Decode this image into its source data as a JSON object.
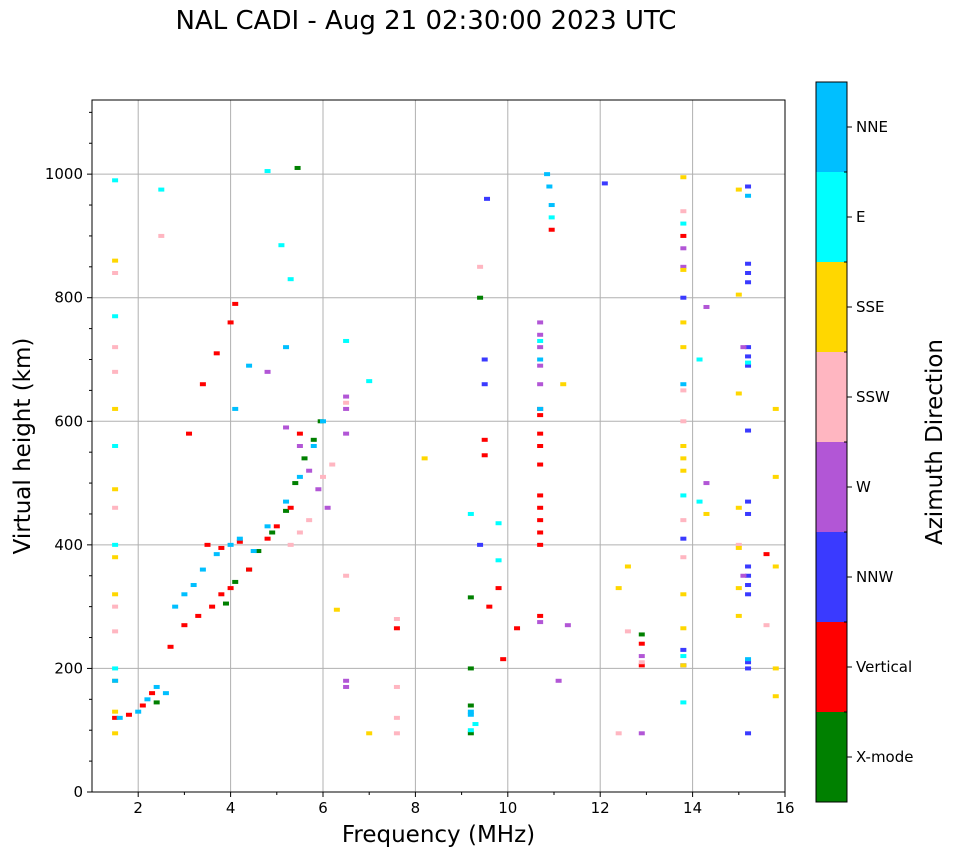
{
  "chart_data": {
    "type": "scatter",
    "title": "NAL CADI - Aug 21 02:30:00 2023 UTC",
    "xlabel": "Frequency (MHz)",
    "ylabel": "Virtual height (km)",
    "xlim": [
      1,
      16
    ],
    "ylim": [
      0,
      1120
    ],
    "x_ticks": [
      2,
      4,
      6,
      8,
      10,
      12,
      14,
      16
    ],
    "y_ticks": [
      0,
      200,
      400,
      600,
      800,
      1000
    ],
    "grid": true,
    "colorbar": {
      "label": "Azimuth Direction",
      "categories": [
        {
          "name": "X-mode",
          "color": "#008000"
        },
        {
          "name": "Vertical",
          "color": "#ff0000"
        },
        {
          "name": "NNW",
          "color": "#3a3aff"
        },
        {
          "name": "W",
          "color": "#b256d6"
        },
        {
          "name": "SSW",
          "color": "#ffb6c1"
        },
        {
          "name": "SSE",
          "color": "#ffd700"
        },
        {
          "name": "E",
          "color": "#00ffff"
        },
        {
          "name": "NNE",
          "color": "#00bfff"
        }
      ]
    },
    "series": [
      {
        "name": "X-mode",
        "points": [
          [
            2.4,
            145
          ],
          [
            3.9,
            305
          ],
          [
            4.1,
            340
          ],
          [
            4.4,
            360
          ],
          [
            4.6,
            390
          ],
          [
            4.9,
            420
          ],
          [
            5.2,
            455
          ],
          [
            5.4,
            500
          ],
          [
            5.6,
            540
          ],
          [
            5.8,
            570
          ],
          [
            5.95,
            600
          ],
          [
            9.2,
            95
          ],
          [
            9.2,
            140
          ],
          [
            9.2,
            200
          ],
          [
            9.2,
            315
          ],
          [
            9.4,
            800
          ],
          [
            12.9,
            255
          ],
          [
            5.45,
            1010
          ]
        ]
      },
      {
        "name": "Vertical",
        "points": [
          [
            1.5,
            120
          ],
          [
            1.8,
            125
          ],
          [
            2.1,
            140
          ],
          [
            2.3,
            160
          ],
          [
            2.7,
            235
          ],
          [
            3.0,
            270
          ],
          [
            3.3,
            285
          ],
          [
            3.6,
            300
          ],
          [
            3.8,
            320
          ],
          [
            4.0,
            330
          ],
          [
            4.4,
            360
          ],
          [
            4.8,
            410
          ],
          [
            5.0,
            430
          ],
          [
            5.3,
            460
          ],
          [
            3.5,
            400
          ],
          [
            3.8,
            395
          ],
          [
            4.2,
            405
          ],
          [
            3.1,
            580
          ],
          [
            3.4,
            660
          ],
          [
            3.7,
            710
          ],
          [
            4.0,
            760
          ],
          [
            4.1,
            790
          ],
          [
            5.5,
            580
          ],
          [
            9.5,
            545
          ],
          [
            9.5,
            570
          ],
          [
            9.6,
            300
          ],
          [
            9.8,
            330
          ],
          [
            9.9,
            215
          ],
          [
            10.2,
            265
          ],
          [
            10.7,
            285
          ],
          [
            10.7,
            400
          ],
          [
            10.7,
            420
          ],
          [
            10.7,
            440
          ],
          [
            10.7,
            460
          ],
          [
            10.7,
            480
          ],
          [
            10.7,
            530
          ],
          [
            10.7,
            560
          ],
          [
            10.7,
            580
          ],
          [
            10.7,
            610
          ],
          [
            10.7,
            620
          ],
          [
            10.95,
            910
          ],
          [
            7.6,
            265
          ],
          [
            12.9,
            205
          ],
          [
            12.9,
            240
          ],
          [
            13.8,
            900
          ],
          [
            15.6,
            385
          ]
        ]
      },
      {
        "name": "NNW",
        "points": [
          [
            9.5,
            700
          ],
          [
            9.5,
            660
          ],
          [
            9.55,
            960
          ],
          [
            9.4,
            400
          ],
          [
            13.8,
            205
          ],
          [
            13.8,
            230
          ],
          [
            13.8,
            410
          ],
          [
            13.8,
            800
          ],
          [
            15.2,
            200
          ],
          [
            15.2,
            210
          ],
          [
            15.2,
            320
          ],
          [
            15.2,
            335
          ],
          [
            15.2,
            350
          ],
          [
            15.2,
            365
          ],
          [
            15.2,
            450
          ],
          [
            15.2,
            470
          ],
          [
            15.2,
            585
          ],
          [
            15.2,
            690
          ],
          [
            15.2,
            705
          ],
          [
            15.2,
            720
          ],
          [
            15.2,
            825
          ],
          [
            15.2,
            840
          ],
          [
            15.2,
            855
          ],
          [
            15.2,
            980
          ],
          [
            15.2,
            95
          ],
          [
            12.1,
            985
          ]
        ]
      },
      {
        "name": "W",
        "points": [
          [
            4.8,
            680
          ],
          [
            5.2,
            590
          ],
          [
            5.5,
            560
          ],
          [
            5.7,
            520
          ],
          [
            5.9,
            490
          ],
          [
            6.1,
            460
          ],
          [
            6.5,
            170
          ],
          [
            6.5,
            180
          ],
          [
            6.5,
            580
          ],
          [
            6.5,
            620
          ],
          [
            6.5,
            640
          ],
          [
            10.7,
            275
          ],
          [
            10.7,
            660
          ],
          [
            10.7,
            690
          ],
          [
            10.7,
            720
          ],
          [
            10.7,
            740
          ],
          [
            10.7,
            760
          ],
          [
            11.3,
            270
          ],
          [
            11.1,
            180
          ],
          [
            12.9,
            95
          ],
          [
            12.9,
            220
          ],
          [
            13.8,
            850
          ],
          [
            13.8,
            880
          ],
          [
            14.3,
            500
          ],
          [
            14.3,
            785
          ],
          [
            15.1,
            350
          ],
          [
            15.1,
            720
          ]
        ]
      },
      {
        "name": "SSW",
        "points": [
          [
            1.5,
            260
          ],
          [
            1.5,
            300
          ],
          [
            1.5,
            460
          ],
          [
            1.5,
            680
          ],
          [
            1.5,
            720
          ],
          [
            1.5,
            840
          ],
          [
            2.5,
            900
          ],
          [
            5.3,
            400
          ],
          [
            5.5,
            420
          ],
          [
            5.7,
            440
          ],
          [
            6.0,
            510
          ],
          [
            6.2,
            530
          ],
          [
            6.5,
            350
          ],
          [
            6.5,
            630
          ],
          [
            7.6,
            95
          ],
          [
            7.6,
            120
          ],
          [
            7.6,
            170
          ],
          [
            7.6,
            280
          ],
          [
            9.4,
            850
          ],
          [
            12.4,
            95
          ],
          [
            12.6,
            260
          ],
          [
            12.9,
            210
          ],
          [
            13.8,
            380
          ],
          [
            13.8,
            440
          ],
          [
            13.8,
            600
          ],
          [
            13.8,
            650
          ],
          [
            13.8,
            940
          ],
          [
            15.0,
            400
          ],
          [
            15.6,
            270
          ]
        ]
      },
      {
        "name": "SSE",
        "points": [
          [
            1.5,
            95
          ],
          [
            1.5,
            130
          ],
          [
            1.5,
            180
          ],
          [
            1.5,
            320
          ],
          [
            1.5,
            380
          ],
          [
            1.5,
            490
          ],
          [
            1.5,
            620
          ],
          [
            1.5,
            860
          ],
          [
            6.3,
            295
          ],
          [
            7.0,
            95
          ],
          [
            8.2,
            540
          ],
          [
            11.2,
            660
          ],
          [
            12.4,
            330
          ],
          [
            12.6,
            365
          ],
          [
            13.8,
            205
          ],
          [
            13.8,
            265
          ],
          [
            13.8,
            320
          ],
          [
            13.8,
            520
          ],
          [
            13.8,
            540
          ],
          [
            13.8,
            560
          ],
          [
            13.8,
            720
          ],
          [
            13.8,
            760
          ],
          [
            13.8,
            845
          ],
          [
            13.8,
            995
          ],
          [
            14.3,
            450
          ],
          [
            15.0,
            285
          ],
          [
            15.0,
            330
          ],
          [
            15.0,
            395
          ],
          [
            15.0,
            460
          ],
          [
            15.0,
            645
          ],
          [
            15.0,
            805
          ],
          [
            15.0,
            975
          ],
          [
            15.8,
            155
          ],
          [
            15.8,
            200
          ],
          [
            15.8,
            365
          ],
          [
            15.8,
            510
          ],
          [
            15.8,
            620
          ]
        ]
      },
      {
        "name": "E",
        "points": [
          [
            1.5,
            200
          ],
          [
            1.5,
            400
          ],
          [
            1.5,
            560
          ],
          [
            1.5,
            770
          ],
          [
            1.5,
            990
          ],
          [
            2.5,
            975
          ],
          [
            4.8,
            1005
          ],
          [
            5.1,
            885
          ],
          [
            5.3,
            830
          ],
          [
            6.5,
            730
          ],
          [
            7.0,
            665
          ],
          [
            9.2,
            100
          ],
          [
            9.2,
            450
          ],
          [
            9.3,
            110
          ],
          [
            9.8,
            375
          ],
          [
            9.8,
            435
          ],
          [
            10.7,
            730
          ],
          [
            10.95,
            930
          ],
          [
            13.8,
            145
          ],
          [
            13.8,
            220
          ],
          [
            13.8,
            480
          ],
          [
            13.8,
            920
          ],
          [
            14.15,
            470
          ],
          [
            14.15,
            700
          ],
          [
            15.2,
            695
          ]
        ]
      },
      {
        "name": "NNE",
        "points": [
          [
            1.5,
            180
          ],
          [
            1.6,
            120
          ],
          [
            2.0,
            130
          ],
          [
            2.2,
            150
          ],
          [
            2.4,
            170
          ],
          [
            2.6,
            160
          ],
          [
            2.8,
            300
          ],
          [
            3.0,
            320
          ],
          [
            3.2,
            335
          ],
          [
            3.4,
            360
          ],
          [
            3.7,
            385
          ],
          [
            4.0,
            400
          ],
          [
            4.2,
            410
          ],
          [
            4.5,
            390
          ],
          [
            4.8,
            430
          ],
          [
            5.2,
            470
          ],
          [
            5.5,
            510
          ],
          [
            5.8,
            560
          ],
          [
            6.0,
            600
          ],
          [
            4.1,
            620
          ],
          [
            4.4,
            690
          ],
          [
            5.2,
            720
          ],
          [
            9.2,
            130
          ],
          [
            9.2,
            125
          ],
          [
            10.7,
            620
          ],
          [
            10.7,
            700
          ],
          [
            10.9,
            980
          ],
          [
            10.85,
            1000
          ],
          [
            10.95,
            950
          ],
          [
            13.8,
            660
          ],
          [
            15.2,
            965
          ],
          [
            15.2,
            215
          ]
        ]
      }
    ]
  }
}
